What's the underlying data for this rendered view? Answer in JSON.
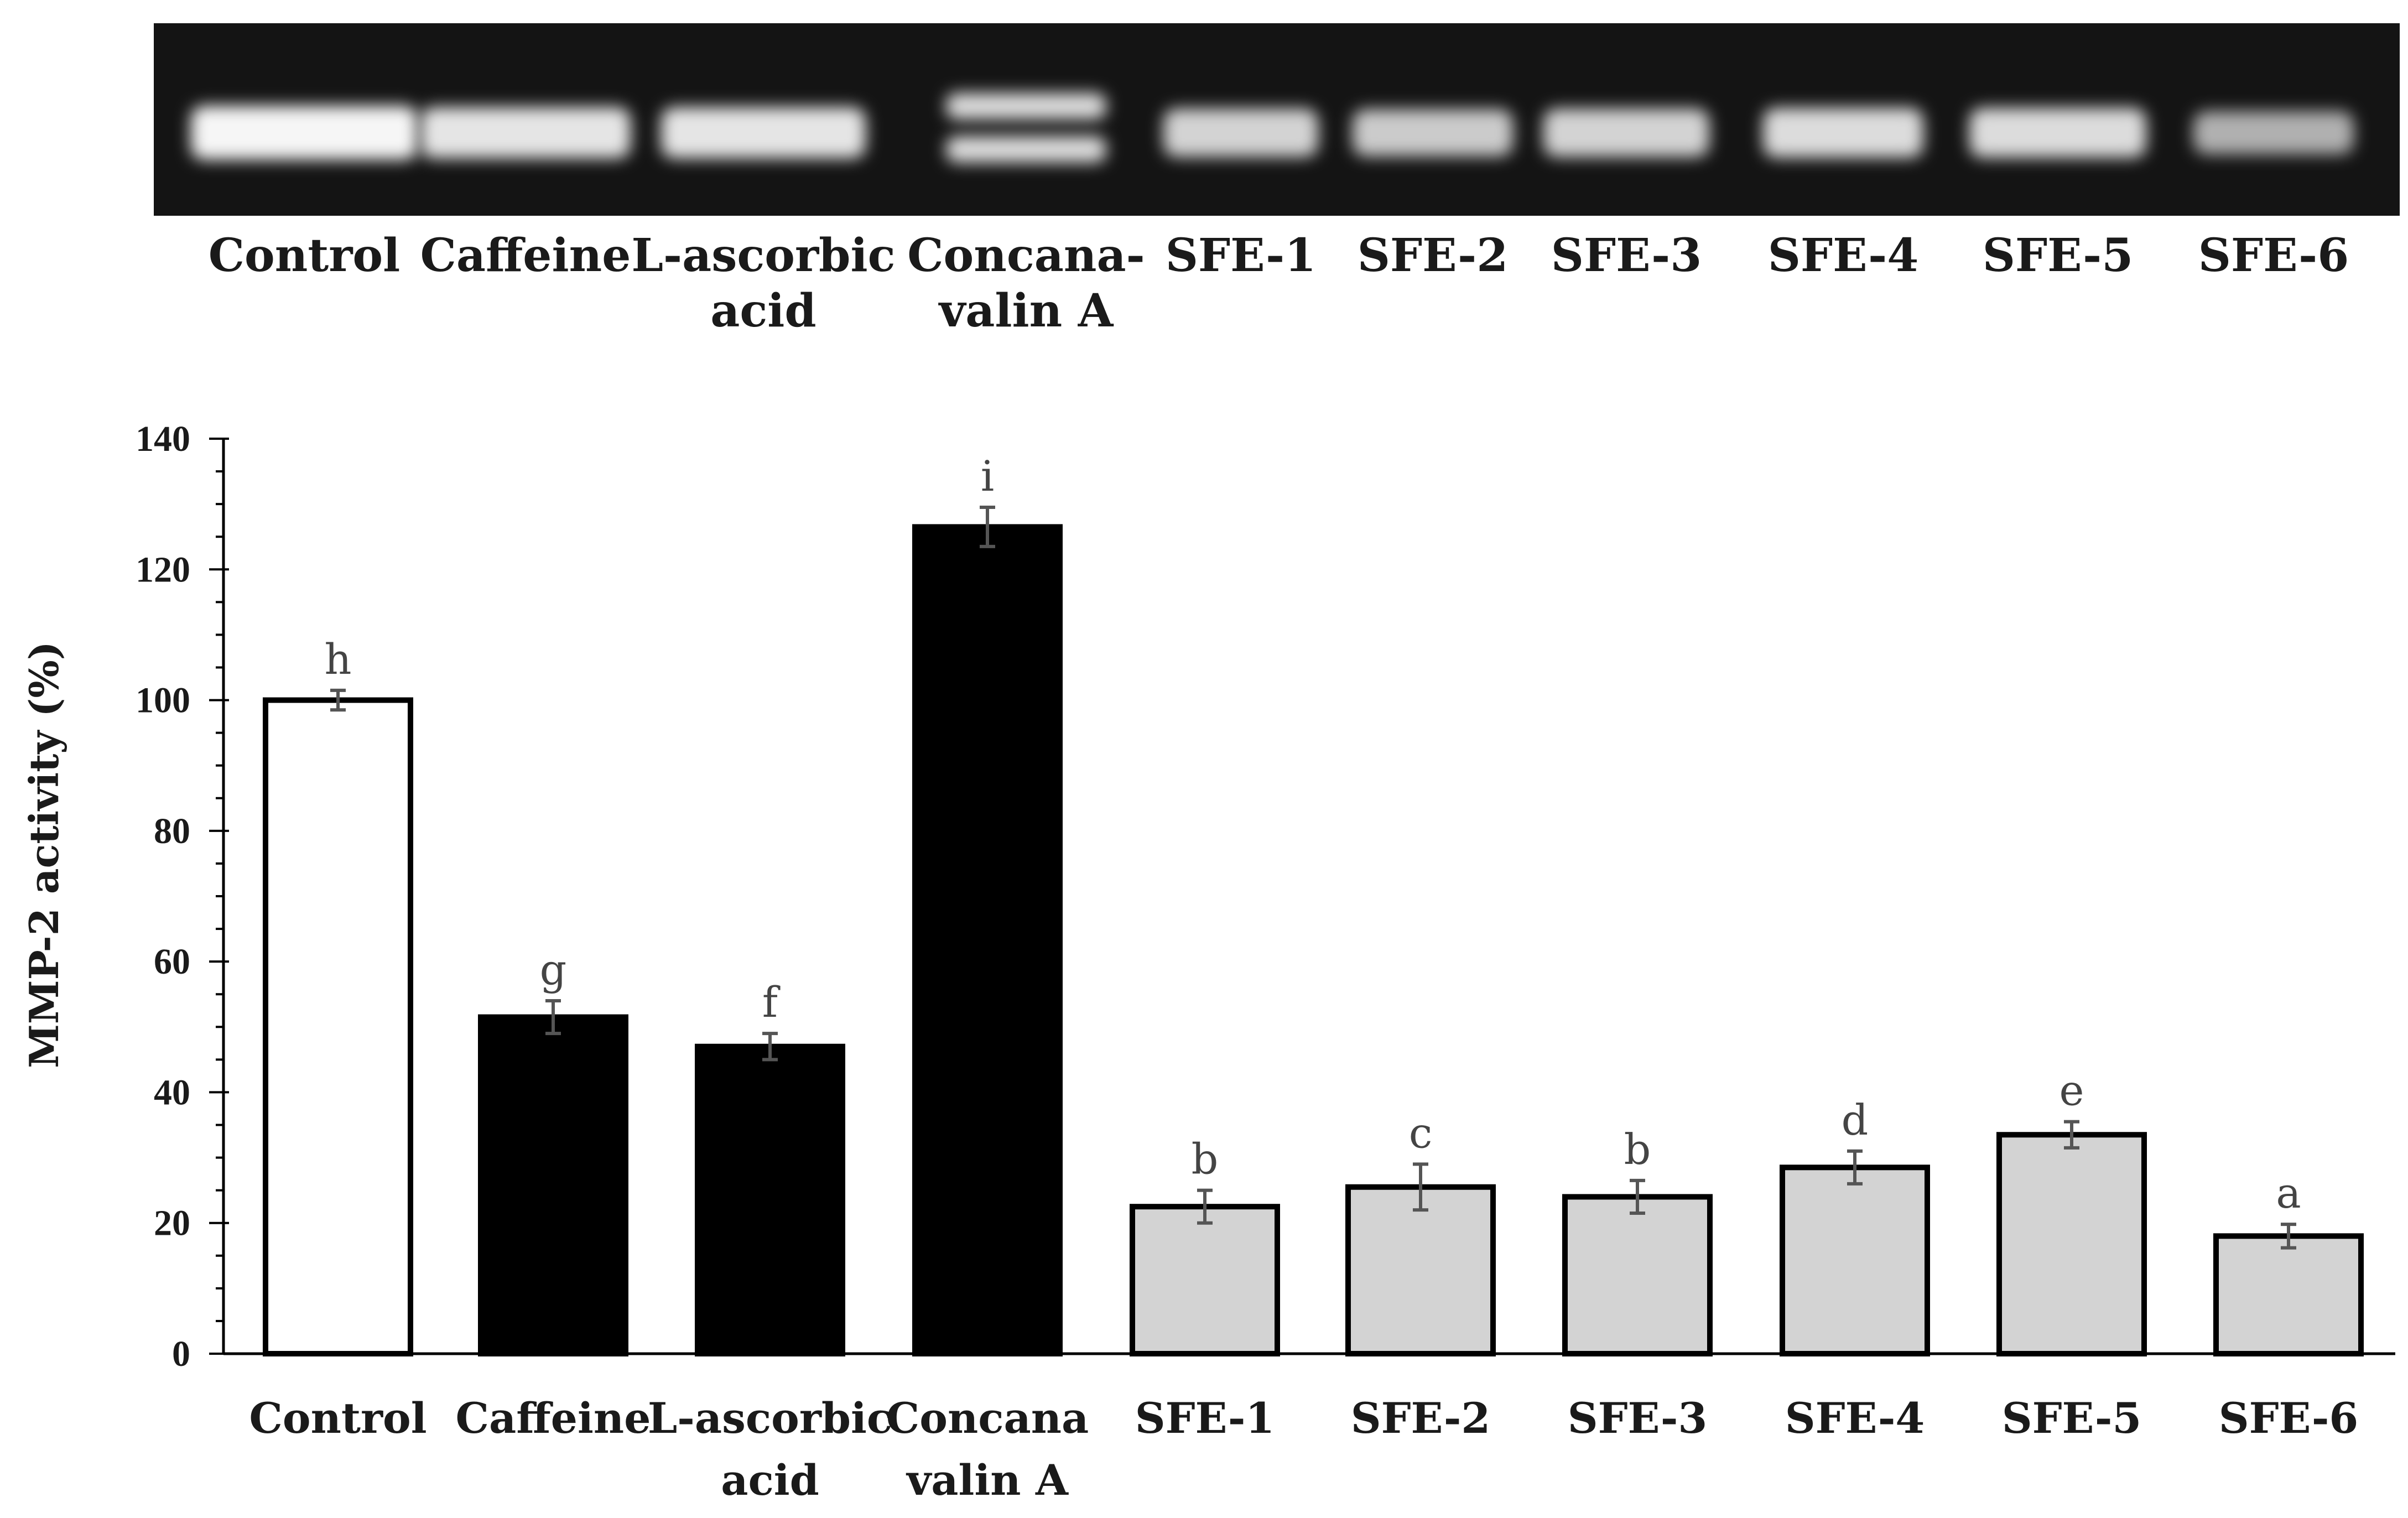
{
  "gel": {
    "lanes": [
      {
        "label_lines": [
          "Control"
        ],
        "intensity": 0.95,
        "bands": 1
      },
      {
        "label_lines": [
          "Caffeine"
        ],
        "intensity": 0.85,
        "bands": 1
      },
      {
        "label_lines": [
          "L-ascorbic",
          "acid"
        ],
        "intensity": 0.85,
        "bands": 1
      },
      {
        "label_lines": [
          "Concana-",
          "valin A"
        ],
        "intensity": 0.8,
        "bands": 2
      },
      {
        "label_lines": [
          "SFE-1"
        ],
        "intensity": 0.75,
        "bands": 1
      },
      {
        "label_lines": [
          "SFE-2"
        ],
        "intensity": 0.7,
        "bands": 1
      },
      {
        "label_lines": [
          "SFE-3"
        ],
        "intensity": 0.75,
        "bands": 1
      },
      {
        "label_lines": [
          "SFE-4"
        ],
        "intensity": 0.8,
        "bands": 1
      },
      {
        "label_lines": [
          "SFE-5"
        ],
        "intensity": 0.8,
        "bands": 1
      },
      {
        "label_lines": [
          "SFE-6"
        ],
        "intensity": 0.55,
        "bands": 1
      }
    ]
  },
  "chart_data": {
    "type": "bar",
    "title": "",
    "xlabel": "",
    "ylabel": "MMP-2 activity (%)",
    "ylim": [
      0,
      140
    ],
    "yticks": [
      0,
      20,
      40,
      60,
      80,
      100,
      120,
      140
    ],
    "grid": false,
    "legend": "none",
    "categories": [
      [
        "Control"
      ],
      [
        "Caffeine"
      ],
      [
        "L-ascorbic",
        "acid"
      ],
      [
        "Concana",
        "valin A"
      ],
      [
        "SFE-1"
      ],
      [
        "SFE-2"
      ],
      [
        "SFE-3"
      ],
      [
        "SFE-4"
      ],
      [
        "SFE-5"
      ],
      [
        "SFE-6"
      ]
    ],
    "values": [
      100,
      51.5,
      47,
      126.5,
      22.5,
      25.5,
      24,
      28.5,
      33.5,
      18
    ],
    "errors": [
      1.5,
      2.5,
      2,
      3,
      2.5,
      3.5,
      2.5,
      2.5,
      2,
      1.8
    ],
    "significance": [
      "h",
      "g",
      "f",
      "i",
      "b",
      "c",
      "b",
      "d",
      "e",
      "a"
    ],
    "fills": [
      "#ffffff",
      "#000000",
      "#000000",
      "#000000",
      "#d3d3d3",
      "#d3d3d3",
      "#d3d3d3",
      "#d3d3d3",
      "#d3d3d3",
      "#d3d3d3"
    ]
  }
}
